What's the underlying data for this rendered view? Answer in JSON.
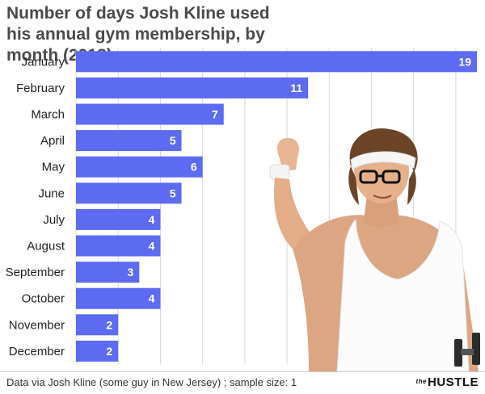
{
  "header": {
    "title": "Number of days Josh Kline used his annual gym membership, by month (2018)"
  },
  "footer": {
    "source": "Data via Josh Kline (some guy in New Jersey) ; sample size: 1",
    "brand_small": "the",
    "brand": "HUSTLE"
  },
  "colors": {
    "bar": "#5c6bf2",
    "grid": "#d9d9d9",
    "label": "#222222",
    "value_label": "#ffffff"
  },
  "chart_data": {
    "type": "bar",
    "orientation": "horizontal",
    "title": "Number of days Josh Kline used his annual gym membership, by month (2018)",
    "categories": [
      "January",
      "February",
      "March",
      "April",
      "May",
      "June",
      "July",
      "August",
      "September",
      "October",
      "November",
      "December"
    ],
    "values": [
      19,
      11,
      7,
      5,
      6,
      5,
      4,
      4,
      3,
      4,
      2,
      2
    ],
    "xlim": [
      0,
      19
    ],
    "grid": true,
    "data_labels": true
  }
}
